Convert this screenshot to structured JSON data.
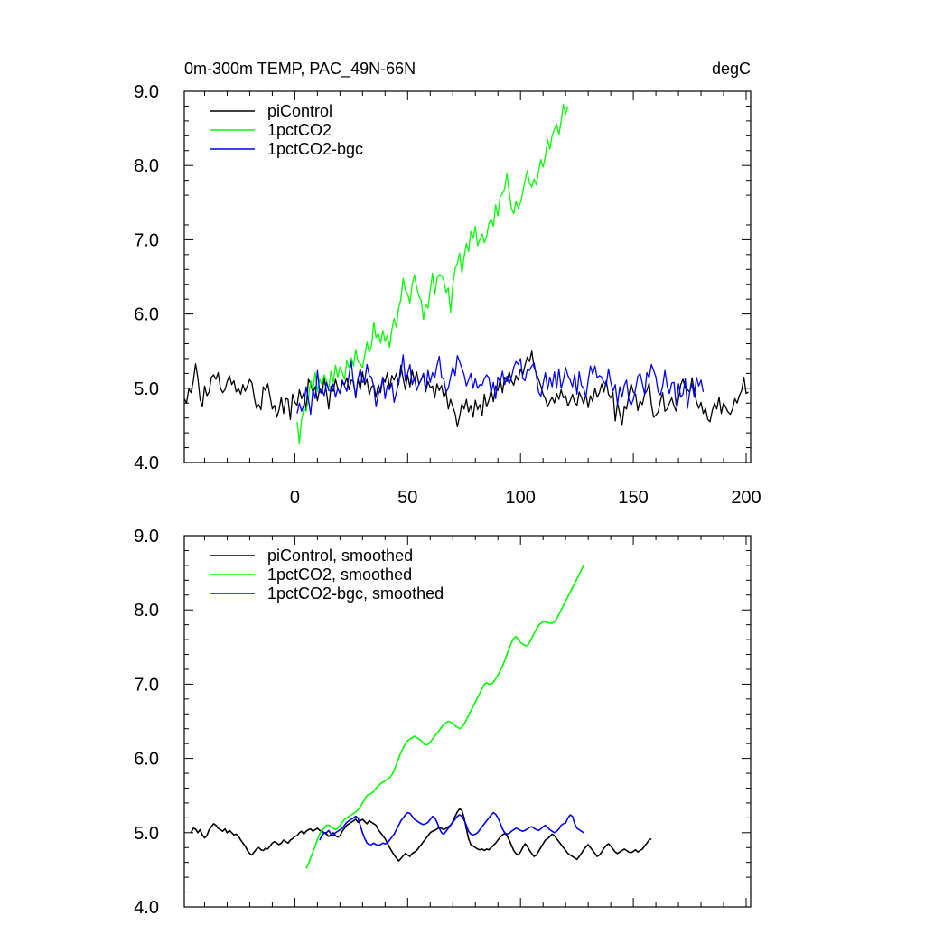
{
  "chart_data": [
    {
      "type": "line",
      "title": "0m-300m TEMP, PAC_49N-66N",
      "units": "degC",
      "xlim": [
        -49,
        202
      ],
      "ylim": [
        4.0,
        9.0
      ],
      "xticks": [
        0,
        50,
        100,
        150,
        200
      ],
      "xtick_labels": [
        "0",
        "50",
        "100",
        "150",
        "200"
      ],
      "yticks": [
        4.0,
        5.0,
        6.0,
        7.0,
        8.0,
        9.0
      ],
      "ytick_labels": [
        "4.0",
        "5.0",
        "6.0",
        "7.0",
        "8.0",
        "9.0"
      ],
      "legend_position": "top-left",
      "series": [
        {
          "name": "piControl",
          "color": "#000000",
          "x_start": -49,
          "values": [
            4.86,
            4.8,
            4.99,
            4.94,
            5.1,
            5.33,
            5.14,
            4.85,
            4.75,
            5.03,
            4.9,
            4.95,
            5.15,
            5.18,
            5.12,
            5.21,
            5.0,
            4.94,
            4.98,
            5.09,
            5.17,
            5.05,
            5.1,
            4.95,
            5.0,
            4.92,
            5.05,
            4.96,
            5.03,
            5.12,
            5.07,
            4.88,
            4.73,
            4.78,
            4.71,
            5.02,
            4.97,
            5.06,
            4.89,
            4.72,
            4.77,
            4.61,
            4.71,
            4.88,
            4.66,
            4.86,
            4.85,
            4.58,
            4.92,
            4.81,
            4.77,
            4.98,
            4.86,
            4.94,
            4.7,
            5.12,
            5.06,
            4.94,
            5.02,
            4.83,
            5.0,
            4.92,
            5.14,
            4.95,
            4.72,
            5.03,
            4.96,
            5.12,
            5.0,
            4.93,
            5.07,
            5.05,
            5.14,
            4.98,
            5.11,
            5.09,
            4.87,
            5.13,
            4.98,
            5.22,
            5.05,
            5.12,
            4.91,
            5.02,
            5.04,
            4.88,
            5.05,
            4.94,
            5.14,
            5.08,
            5.21,
            5.0,
            5.17,
            5.11,
            5.2,
            5.05,
            5.31,
            5.13,
            4.98,
            5.18,
            5.02,
            5.24,
            5.1,
            5.22,
            5.05,
            5.12,
            5.2,
            4.95,
            5.09,
            5.01,
            5.03,
            4.87,
            5.06,
            4.97,
            5.04,
            4.88,
            4.95,
            4.72,
            4.85,
            4.75,
            4.66,
            4.48,
            4.62,
            4.79,
            4.72,
            4.85,
            4.68,
            4.77,
            4.61,
            4.84,
            4.71,
            4.78,
            4.63,
            4.92,
            4.75,
            4.84,
            4.98,
            4.82,
            5.03,
            4.97,
            5.12,
            4.94,
            5.15,
            5.09,
            5.22,
            5.1,
            5.04,
            5.17,
            5.11,
            5.26,
            5.18,
            5.31,
            5.42,
            5.36,
            5.5,
            5.28,
            5.2,
            5.12,
            5.03,
            4.92,
            4.86,
            4.75,
            4.82,
            4.88,
            4.8,
            4.93,
            4.85,
            4.98,
            4.87,
            4.9,
            4.76,
            4.83,
            4.92,
            4.81,
            4.77,
            4.95,
            4.88,
            4.79,
            4.92,
            4.74,
            4.9,
            4.82,
            5.0,
            4.88,
            4.94,
            5.06,
            4.95,
            5.1,
            4.92,
            4.87,
            4.94,
            4.56,
            4.8,
            4.66,
            4.5,
            4.75,
            4.72,
            4.9,
            5.06,
            4.95,
            4.92,
            4.7,
            4.83,
            4.78,
            4.92,
            4.97,
            5.07,
            4.78,
            4.61,
            4.64,
            4.68,
            4.83,
            4.94,
            4.69,
            4.72,
            4.8,
            4.87,
            4.76,
            4.69,
            4.86,
            5.05,
            5.12,
            5.0,
            4.98,
            4.95,
            5.14,
            4.97,
            4.82,
            4.73,
            4.81,
            4.66,
            4.73,
            4.58,
            4.55,
            4.7,
            4.8,
            4.72,
            4.88,
            4.66,
            4.8,
            4.74,
            4.68,
            4.65,
            4.72,
            4.86,
            4.8,
            4.9,
            4.97,
            5.15,
            4.93,
            4.95
          ]
        },
        {
          "name": "1pctCO2",
          "color": "#00ff00",
          "x_start": 1,
          "values": [
            4.55,
            4.26,
            4.58,
            4.72,
            4.69,
            4.86,
            5.1,
            4.97,
            5.21,
            4.96,
            5.12,
            5.05,
            5.18,
            5.1,
            4.99,
            5.23,
            5.08,
            5.31,
            5.15,
            5.29,
            5.21,
            5.12,
            5.37,
            5.28,
            5.41,
            5.3,
            5.52,
            5.36,
            5.33,
            5.28,
            5.44,
            5.62,
            5.48,
            5.57,
            5.89,
            5.68,
            5.74,
            5.61,
            5.78,
            5.63,
            5.71,
            5.55,
            5.79,
            5.94,
            5.82,
            6.08,
            6.2,
            6.48,
            6.32,
            6.27,
            6.15,
            6.4,
            6.53,
            6.36,
            6.24,
            6.18,
            5.93,
            6.13,
            6.08,
            6.32,
            6.55,
            6.26,
            6.48,
            6.53,
            6.52,
            6.45,
            6.29,
            6.35,
            6.02,
            6.4,
            6.61,
            6.68,
            6.82,
            6.55,
            6.77,
            6.95,
            6.84,
            7.11,
            7.02,
            7.18,
            6.92,
            7.0,
            7.08,
            6.96,
            7.05,
            7.22,
            7.28,
            7.18,
            7.47,
            7.32,
            7.58,
            7.62,
            7.69,
            7.89,
            7.64,
            7.42,
            7.35,
            7.52,
            7.42,
            7.5,
            7.64,
            7.8,
            7.93,
            7.76,
            7.71,
            7.82,
            7.74,
            7.92,
            8.08,
            7.98,
            8.12,
            8.35,
            8.22,
            8.4,
            8.49,
            8.56,
            8.41,
            8.6,
            8.82,
            8.69,
            8.8
          ]
        },
        {
          "name": "1pctCO2-bgc",
          "color": "#0000ff",
          "x_start": 1,
          "values": [
            4.66,
            4.8,
            4.69,
            4.78,
            5.02,
            4.85,
            4.65,
            4.98,
            4.86,
            5.24,
            4.94,
            4.99,
            4.9,
            5.08,
            4.97,
            4.96,
            5.06,
            4.88,
            5.0,
            4.93,
            5.11,
            5.03,
            4.96,
            5.18,
            5.36,
            5.05,
            4.9,
            5.12,
            5.26,
            5.08,
            5.1,
            5.32,
            5.17,
            5.15,
            5.02,
            4.75,
            4.92,
            5.0,
            5.15,
            4.86,
            5.04,
            4.98,
            5.07,
            4.81,
            4.94,
            5.09,
            5.2,
            5.45,
            5.1,
            5.2,
            5.32,
            5.05,
            5.14,
            4.97,
            5.06,
            5.11,
            5.2,
            4.97,
            5.24,
            5.08,
            5.21,
            5.14,
            5.31,
            5.43,
            5.15,
            5.12,
            4.95,
            5.0,
            5.15,
            5.29,
            5.17,
            5.44,
            5.36,
            5.27,
            5.18,
            5.03,
            5.11,
            5.2,
            5.0,
            5.13,
            5.0,
            5.05,
            5.04,
            5.13,
            5.18,
            5.14,
            4.94,
            5.08,
            4.86,
            5.15,
            5.08,
            5.23,
            5.05,
            5.16,
            5.06,
            5.15,
            5.28,
            5.36,
            5.32,
            5.4,
            5.13,
            5.1,
            5.25,
            5.24,
            5.3,
            5.34,
            5.17,
            4.95,
            4.89,
            5.06,
            5.21,
            4.98,
            5.15,
            5.02,
            5.22,
            5.0,
            5.26,
            5.0,
            5.11,
            5.28,
            5.17,
            5.11,
            5.02,
            5.19,
            4.92,
            5.22,
            5.04,
            5.0,
            4.88,
            5.1,
            5.3,
            5.19,
            5.3,
            5.14,
            5.17,
            5.15,
            5.08,
            5.04,
            5.26,
            5.08,
            4.96,
            5.05,
            4.78,
            5.02,
            4.88,
            5.04,
            5.11,
            4.85,
            4.77,
            4.85,
            4.99,
            5.16,
            5.2,
            5.06,
            4.92,
            5.21,
            5.14,
            5.32,
            5.24,
            5.15,
            4.95,
            4.91,
            5.03,
            5.24,
            5.03,
            4.93,
            5.07,
            5.08,
            4.76,
            5.06,
            4.88,
            4.92,
            5.13,
            4.73,
            4.96,
            5.06,
            4.88,
            5.15,
            5.03,
            5.11,
            4.95
          ]
        }
      ]
    },
    {
      "type": "line",
      "title": "",
      "xlim": [
        -49,
        202
      ],
      "ylim": [
        4.0,
        9.0
      ],
      "xticks": [
        0,
        50,
        100,
        150,
        200
      ],
      "yticks": [
        4.0,
        5.0,
        6.0,
        7.0,
        8.0,
        9.0
      ],
      "ytick_labels": [
        "4.0",
        "5.0",
        "6.0",
        "7.0",
        "8.0",
        "9.0"
      ],
      "legend_position": "top-left",
      "series": [
        {
          "name": "piControl, smoothed",
          "color": "#000000",
          "x_start": -46,
          "values": [
            5.0,
            5.06,
            5.05,
            5.0,
            5.04,
            4.97,
            4.93,
            4.96,
            5.04,
            5.08,
            5.12,
            5.1,
            5.06,
            5.04,
            5.02,
            5.05,
            5.0,
            5.03,
            5.0,
            4.97,
            4.98,
            4.95,
            4.9,
            4.86,
            4.82,
            4.76,
            4.72,
            4.7,
            4.74,
            4.78,
            4.8,
            4.77,
            4.76,
            4.79,
            4.78,
            4.82,
            4.86,
            4.88,
            4.86,
            4.84,
            4.86,
            4.9,
            4.88,
            4.86,
            4.9,
            4.92,
            4.95,
            4.96,
            5.0,
            5.02,
            4.98,
            5.02,
            5.04,
            5.05,
            5.02,
            5.04,
            5.06,
            5.03,
            5.02,
            5.0,
            4.98,
            4.95,
            4.97,
            5.0,
            4.96,
            4.94,
            4.96,
            5.02,
            5.06,
            5.1,
            5.12,
            5.14,
            5.16,
            5.18,
            5.14,
            5.16,
            5.18,
            5.15,
            5.12,
            5.16,
            5.14,
            5.12,
            5.1,
            5.04,
            5.0,
            4.96,
            4.92,
            4.86,
            4.8,
            4.75,
            4.7,
            4.66,
            4.62,
            4.65,
            4.69,
            4.72,
            4.7,
            4.68,
            4.72,
            4.74,
            4.76,
            4.8,
            4.84,
            4.88,
            4.92,
            4.96,
            5.0,
            5.02,
            5.03,
            5.05,
            5.07,
            5.06,
            5.04,
            5.06,
            5.08,
            5.1,
            5.15,
            5.22,
            5.28,
            5.32,
            5.3,
            5.2,
            5.05,
            4.92,
            4.84,
            4.82,
            4.8,
            4.78,
            4.77,
            4.78,
            4.76,
            4.78,
            4.77,
            4.8,
            4.83,
            4.86,
            4.9,
            4.94,
            4.97,
            4.99,
            4.96,
            4.9,
            4.83,
            4.76,
            4.72,
            4.7,
            4.74,
            4.8,
            4.85,
            4.82,
            4.76,
            4.72,
            4.68,
            4.7,
            4.75,
            4.8,
            4.85,
            4.9,
            4.92,
            4.95,
            4.98,
            4.96,
            4.92,
            4.88,
            4.84,
            4.8,
            4.76,
            4.72,
            4.7,
            4.68,
            4.66,
            4.64,
            4.68,
            4.72,
            4.77,
            4.81,
            4.84,
            4.8,
            4.76,
            4.72,
            4.68,
            4.7,
            4.74,
            4.79,
            4.83,
            4.85,
            4.82,
            4.78,
            4.74,
            4.72,
            4.74,
            4.76,
            4.78,
            4.76,
            4.74,
            4.73,
            4.75,
            4.77,
            4.74,
            4.76,
            4.78,
            4.82,
            4.86,
            4.9,
            4.92
          ]
        },
        {
          "name": "1pctCO2, smoothed",
          "color": "#00ff00",
          "x_start": 5,
          "values": [
            4.52,
            4.58,
            4.66,
            4.74,
            4.82,
            4.91,
            4.98,
            5.03,
            5.06,
            5.1,
            5.1,
            5.08,
            5.06,
            5.04,
            5.06,
            5.1,
            5.14,
            5.18,
            5.2,
            5.22,
            5.24,
            5.26,
            5.28,
            5.31,
            5.35,
            5.4,
            5.45,
            5.5,
            5.52,
            5.53,
            5.56,
            5.6,
            5.63,
            5.66,
            5.68,
            5.7,
            5.72,
            5.74,
            5.78,
            5.84,
            5.92,
            6.0,
            6.08,
            6.14,
            6.2,
            6.24,
            6.26,
            6.28,
            6.3,
            6.28,
            6.26,
            6.24,
            6.2,
            6.18,
            6.19,
            6.22,
            6.26,
            6.3,
            6.34,
            6.38,
            6.42,
            6.46,
            6.48,
            6.5,
            6.49,
            6.47,
            6.44,
            6.42,
            6.4,
            6.42,
            6.46,
            6.52,
            6.58,
            6.64,
            6.7,
            6.76,
            6.82,
            6.88,
            6.94,
            7.0,
            7.02,
            7.0,
            7.0,
            7.03,
            7.07,
            7.12,
            7.18,
            7.24,
            7.32,
            7.4,
            7.48,
            7.56,
            7.62,
            7.64,
            7.6,
            7.56,
            7.54,
            7.52,
            7.52,
            7.56,
            7.62,
            7.68,
            7.74,
            7.79,
            7.82,
            7.84,
            7.84,
            7.83,
            7.82,
            7.82,
            7.84,
            7.88,
            7.94,
            8.0,
            8.06,
            8.12,
            8.18,
            8.24,
            8.3,
            8.36,
            8.42,
            8.48,
            8.54,
            8.6
          ]
        },
        {
          "name": "1pctCO2-bgc, smoothed",
          "color": "#0000ff",
          "x_start": 11,
          "values": [
            4.9,
            4.96,
            5.0,
            5.0,
            5.03,
            4.98,
            4.96,
            5.0,
            5.02,
            5.04,
            5.06,
            5.1,
            5.14,
            5.16,
            5.18,
            5.2,
            5.22,
            5.2,
            5.1,
            5.0,
            4.92,
            4.86,
            4.84,
            4.84,
            4.86,
            4.84,
            4.83,
            4.84,
            4.86,
            4.85,
            4.86,
            4.9,
            4.94,
            4.98,
            5.04,
            5.1,
            5.16,
            5.2,
            5.24,
            5.27,
            5.26,
            5.22,
            5.18,
            5.16,
            5.14,
            5.12,
            5.11,
            5.12,
            5.14,
            5.18,
            5.22,
            5.2,
            5.14,
            5.06,
            5.0,
            4.98,
            5.02,
            5.06,
            5.1,
            5.14,
            5.18,
            5.22,
            5.24,
            5.22,
            5.17,
            5.1,
            5.02,
            4.98,
            4.97,
            4.98,
            5.0,
            5.04,
            5.08,
            5.12,
            5.16,
            5.2,
            5.24,
            5.27,
            5.25,
            5.2,
            5.13,
            5.05,
            5.0,
            4.98,
            4.99,
            5.02,
            5.04,
            5.06,
            5.05,
            5.03,
            5.02,
            5.03,
            5.05,
            5.07,
            5.08,
            5.06,
            5.04,
            5.03,
            5.05,
            5.08,
            5.1,
            5.07,
            5.04,
            5.02,
            5.0,
            5.02,
            5.05,
            5.1,
            5.12,
            5.13,
            5.2,
            5.24,
            5.22,
            5.12,
            5.06,
            5.04,
            5.02,
            5.0
          ]
        }
      ]
    }
  ]
}
